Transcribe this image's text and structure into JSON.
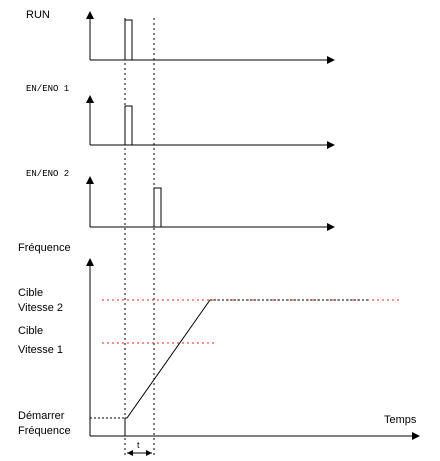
{
  "signals": {
    "run": "RUN",
    "en_eno_1": "EN/ENO 1",
    "en_eno_2": "EN/ENO 2"
  },
  "frequency_chart": {
    "y_axis_label": "Fréquence",
    "x_axis_label": "Temps",
    "target_speed_2": [
      "Cible",
      "Vitesse 2"
    ],
    "target_speed_1": [
      "Cible",
      "Vitesse 1"
    ],
    "start_frequency": [
      "Démarrer",
      "Fréquence"
    ],
    "delay_label": "t"
  }
}
